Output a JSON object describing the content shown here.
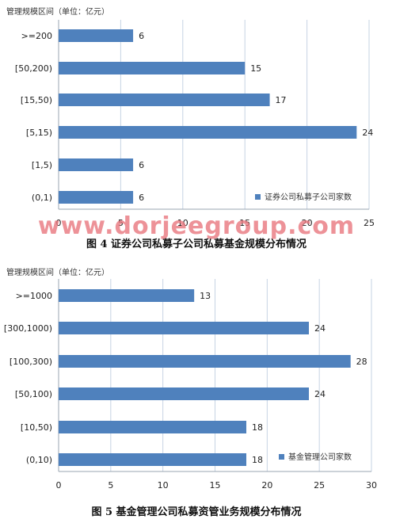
{
  "watermark": "www.dorjeegroup.com",
  "colors": {
    "bar": "#4f81bd",
    "grid": "#c6d3e3",
    "axis": "#9aa5b1"
  },
  "chart_data": [
    {
      "type": "bar",
      "orientation": "horizontal",
      "unit_label": "管理规模区间（单位：亿元）",
      "caption": "图 4   证券公司私募子公司私募基金规模分布情况",
      "legend": "证券公司私募子公司家数",
      "legend_position": "bottom-right",
      "categories": [
        ">=200",
        "[50,200)",
        "[15,50)",
        "[5,15)",
        "[1,5)",
        "(0,1)"
      ],
      "values": [
        6,
        15,
        17,
        24,
        6,
        6
      ],
      "xlim": [
        0,
        25
      ],
      "xticks": [
        "0",
        "5",
        "10",
        "15",
        "20",
        "25"
      ],
      "grid": true
    },
    {
      "type": "bar",
      "orientation": "horizontal",
      "unit_label": "管理规模区间（单位：亿元）",
      "caption": "图 5   基金管理公司私募资管业务规模分布情况",
      "legend": "基金管理公司家数",
      "legend_position": "bottom-right",
      "categories": [
        ">=1000",
        "[300,1000)",
        "[100,300)",
        "[50,100)",
        "[10,50)",
        "(0,10)"
      ],
      "values": [
        13,
        24,
        28,
        24,
        18,
        18
      ],
      "xlim": [
        0,
        30
      ],
      "xticks": [
        "0",
        "5",
        "10",
        "15",
        "20",
        "25",
        "30"
      ],
      "grid": true
    }
  ]
}
